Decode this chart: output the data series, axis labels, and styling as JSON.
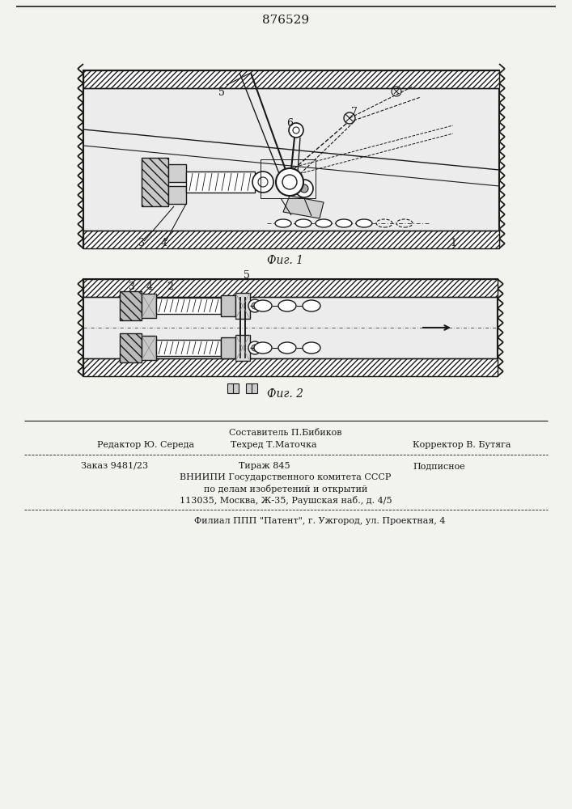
{
  "patent_number": "876529",
  "fig1_label": "Фиг. 1",
  "fig2_label": "Фиг. 2",
  "composer": "Составитель П.Бибиков",
  "editor": "Редактор Ю. Середа",
  "techred": "Техред Т.Маточка",
  "corrector": "Корректор В. Бутяга",
  "order": "Заказ 9481/23",
  "tiraz": "Тираж 845",
  "podpisnoe": "Подписное",
  "org1": "ВНИИПИ Государственного комитета СССР",
  "org2": "по делам изобретений и открытий",
  "org3": "113035, Москва, Ж-35, Раушская наб., д. 4/5",
  "filial": "Филиал ППП \"Патент\", г. Ужгород, ул. Проектная, 4",
  "bg_color": "#f2f2ee",
  "line_color": "#1a1a1a"
}
